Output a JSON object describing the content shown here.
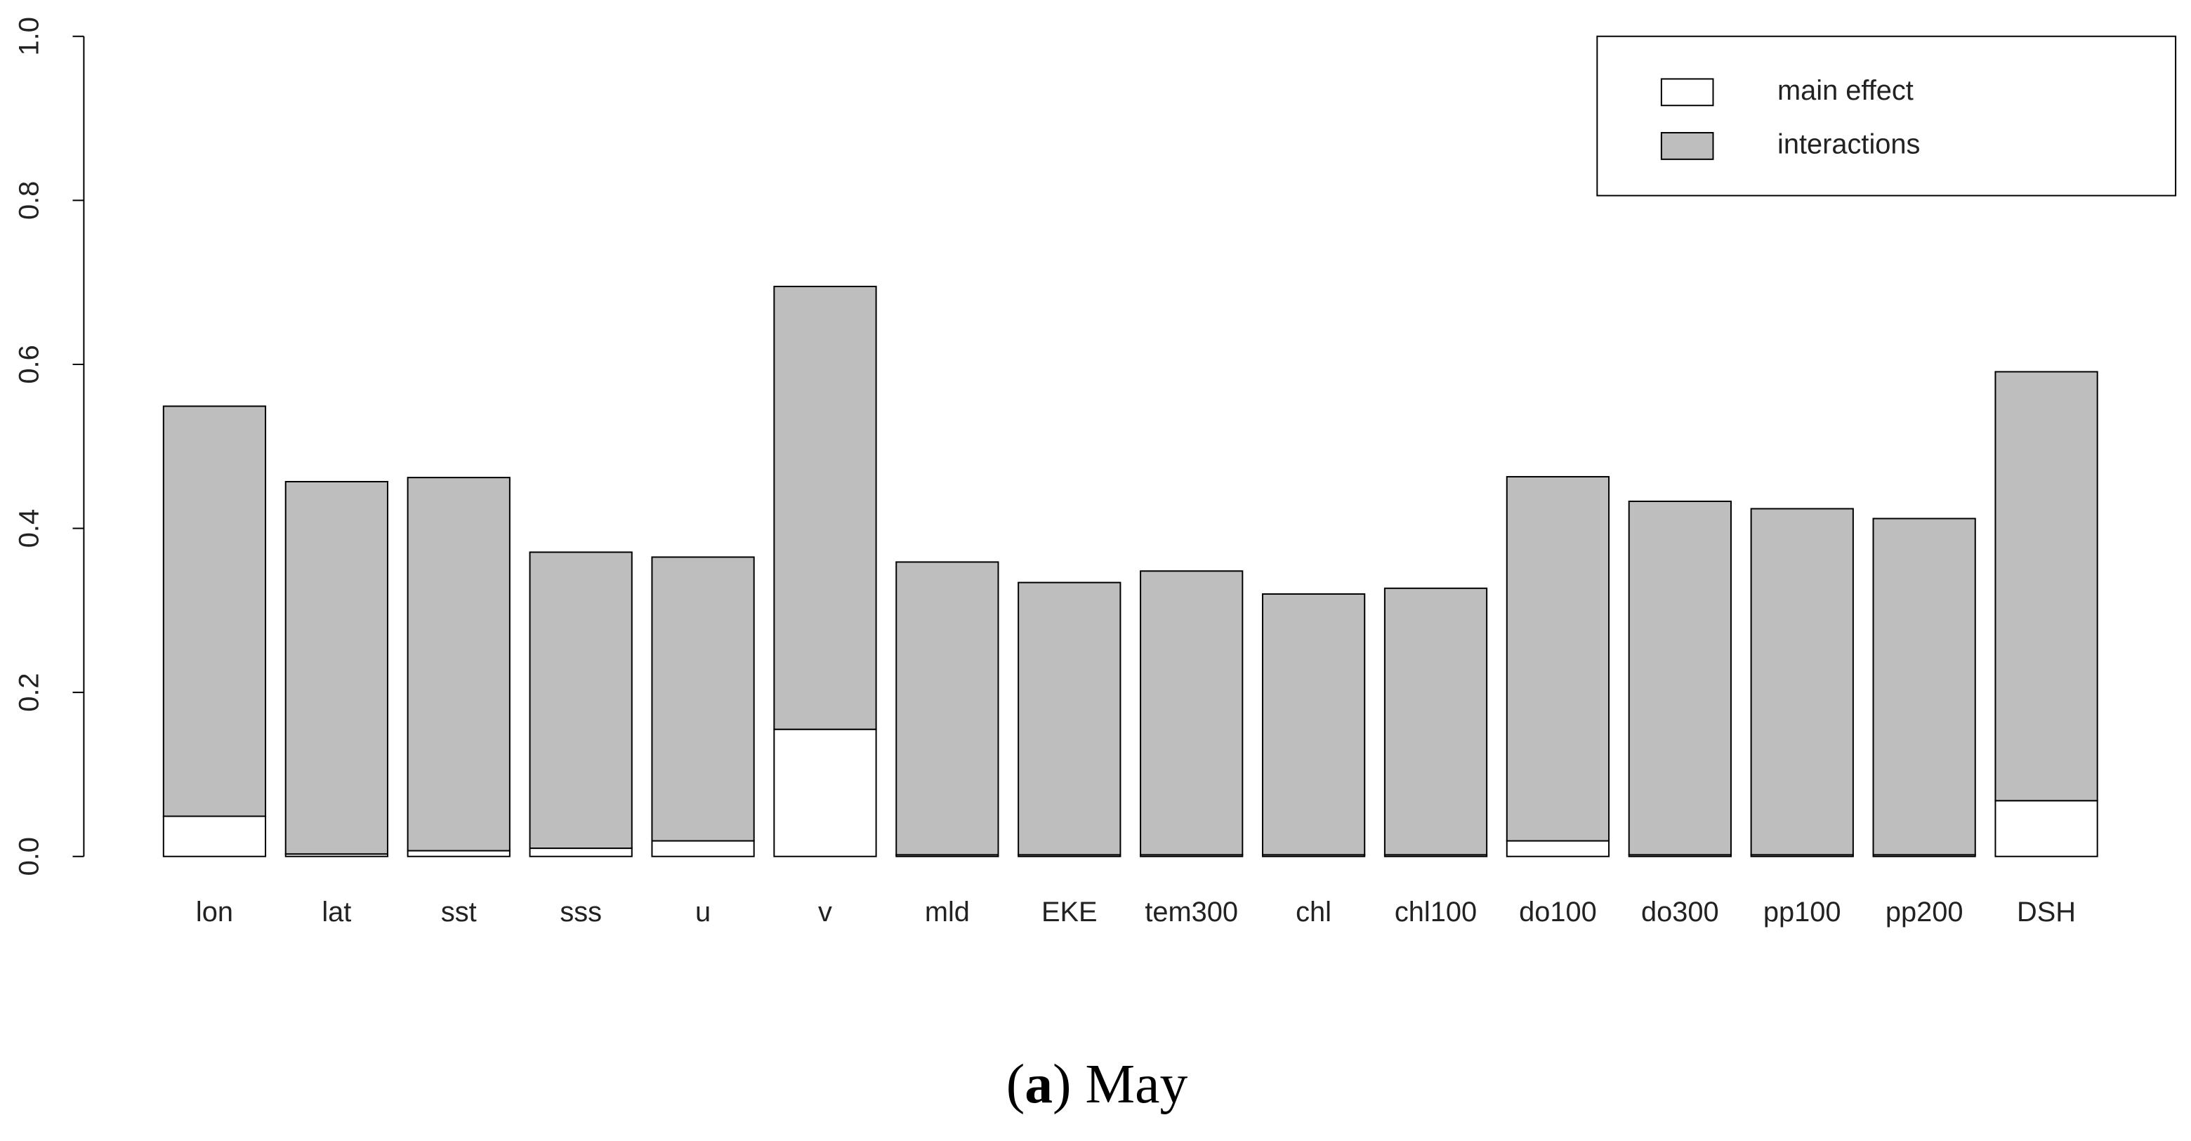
{
  "chart_data": {
    "type": "stacked-bar",
    "caption_parts": [
      "(",
      "a",
      ") May"
    ],
    "categories": [
      "lon",
      "lat",
      "sst",
      "sss",
      "u",
      "v",
      "mld",
      "EKE",
      "tem300",
      "chl",
      "chl100",
      "do100",
      "do300",
      "pp100",
      "pp200",
      "DSH"
    ],
    "series": [
      {
        "name": "main effect",
        "color": "#ffffff",
        "values": [
          0.049,
          0.003,
          0.007,
          0.01,
          0.019,
          0.155,
          0.002,
          0.002,
          0.002,
          0.002,
          0.002,
          0.019,
          0.002,
          0.002,
          0.002,
          0.068
        ]
      },
      {
        "name": "interactions",
        "color": "#bebebe",
        "values": [
          0.5,
          0.454,
          0.455,
          0.361,
          0.346,
          0.54,
          0.357,
          0.332,
          0.346,
          0.318,
          0.325,
          0.444,
          0.431,
          0.422,
          0.41,
          0.523
        ]
      }
    ],
    "ylim": [
      0,
      1
    ],
    "yticks": [
      {
        "value": 0,
        "label": "0.0"
      },
      0.2,
      0.4,
      0.6,
      0.8,
      {
        "value": 1,
        "label": "1.0"
      }
    ],
    "legend_position": "top-right"
  }
}
